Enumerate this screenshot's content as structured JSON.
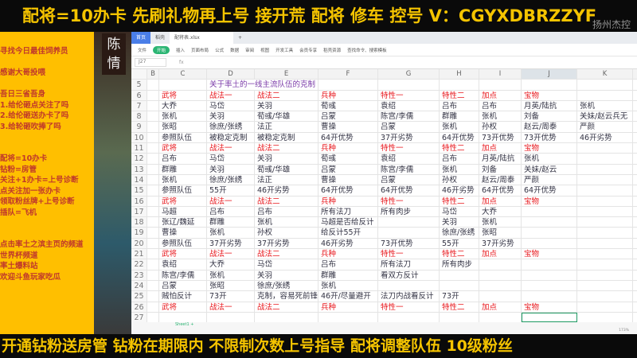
{
  "top_banner": "配将=10办卡  先刷礼物再上号  接开荒 配将 修车 控号 V：CGYXDBRZZYF",
  "watermark": "扬州杰控",
  "bottom_banner": "开通钻粉送房管  钻粉在期限内 不限制次数上号指导 配将调整队伍   10级粉丝",
  "side_panel": [
    "寻找今日最佳饲养员",
    "",
    "感谢大哥投喂",
    "",
    "吾日三省吾身",
    "1.给伦砸点关注了吗",
    "2.给伦砸送办卡了吗",
    "3.给轮砸吹捧了吗",
    "",
    "",
    "配将=10办卡",
    "钻粉=房管",
    "关注+1办卡=上号诊断",
    "点关注加一张办卡",
    "领取粉丝牌+上号诊断",
    "插队=飞机",
    "",
    "",
    "点击率土之滨主页的频道",
    "世界杯频道",
    "率土爆料站",
    "欢迎斗鱼玩家吃瓜"
  ],
  "game_name": "陈情",
  "tabs": [
    "首页",
    "稻壳",
    "配将表.xlsx",
    "+"
  ],
  "toolbar": [
    "文件",
    "开始",
    "插入",
    "页面布局",
    "公式",
    "数据",
    "审阅",
    "视图",
    "开发工具",
    "会员专享",
    "稻壳资源",
    "查找命令、搜索模板"
  ],
  "namebox": "J27",
  "fx": "fx",
  "columns": [
    "B",
    "C",
    "D",
    "E",
    "F",
    "G",
    "H",
    "I",
    "J",
    "K"
  ],
  "selected_column": "J",
  "selected_cell": "J27",
  "colors": {
    "header_red": "#e8161b",
    "title_purple": "#7a3aa8",
    "banner_yellow": "#f5c400",
    "panel_yellow": "#ffbf00"
  },
  "rows": [
    {
      "n": "5",
      "cells": [
        "",
        "",
        "关于率土的一线主流队伍的克制"
      ],
      "title": true
    },
    {
      "n": "6",
      "cells": [
        "",
        "武将",
        "战法一",
        "战法二",
        "兵种",
        "特性一",
        "特性二",
        "加点",
        "宝物"
      ],
      "header": true
    },
    {
      "n": "7",
      "cells": [
        "",
        "大乔",
        "马岱",
        "关羽",
        "荀彧",
        "袁绍",
        "吕布",
        "吕布",
        "月英/陆抗",
        "张机"
      ]
    },
    {
      "n": "8",
      "cells": [
        "",
        "张机",
        "关羽",
        "荀彧/华雄",
        "吕蒙",
        "陈宫/李儒",
        "群雕",
        "张机",
        "刘备",
        "关妹/赵云兵无"
      ]
    },
    {
      "n": "9",
      "cells": [
        "",
        "张昭",
        "徐庶/张绣",
        "法正",
        "曹操",
        "吕蒙",
        "张机",
        "孙权",
        "赵云/周泰",
        "严颜"
      ]
    },
    {
      "n": "10",
      "cells": [
        "",
        "参照队伍",
        "被稳定克制",
        "被稳定克制",
        "64开优势",
        "37开劣势",
        "64开优势",
        "73开优势",
        "73开优势",
        "46开劣势"
      ]
    },
    {
      "n": "11",
      "cells": [
        "",
        "武将",
        "战法一",
        "战法二",
        "兵种",
        "特性一",
        "特性二",
        "加点",
        "宝物"
      ],
      "header": true
    },
    {
      "n": "12",
      "cells": [
        "",
        "吕布",
        "马岱",
        "关羽",
        "荀彧",
        "袁绍",
        "吕布",
        "月英/陆抗",
        "张机"
      ]
    },
    {
      "n": "13",
      "cells": [
        "",
        "群雕",
        "关羽",
        "荀彧/华雄",
        "吕蒙",
        "陈宫/李儒",
        "张机",
        "刘备",
        "关妹/赵云"
      ]
    },
    {
      "n": "14",
      "cells": [
        "",
        "张机",
        "徐庶/张绣",
        "法正",
        "曹操",
        "吕蒙",
        "孙权",
        "赵云/周泰",
        "严颜"
      ]
    },
    {
      "n": "15",
      "cells": [
        "",
        "参照队伍",
        "55开",
        "46开劣势",
        "64开优势",
        "64开优势",
        "46开劣势",
        "64开优势",
        "64开优势"
      ]
    },
    {
      "n": "16",
      "cells": [
        "",
        "武将",
        "战法一",
        "战法二",
        "兵种",
        "特性一",
        "特性二",
        "加点",
        "宝物"
      ],
      "header": true
    },
    {
      "n": "17",
      "cells": [
        "",
        "马超",
        "吕布",
        "吕布",
        "所有法刀",
        "所有肉步",
        "马岱",
        "大乔"
      ]
    },
    {
      "n": "18",
      "cells": [
        "",
        "张辽/魏延",
        "群雕",
        "张机",
        "马超是否给反计",
        "",
        "关羽",
        "张机"
      ]
    },
    {
      "n": "19",
      "cells": [
        "",
        "曹操",
        "张机",
        "孙权",
        "给反计55开",
        "",
        "徐庶/张绣",
        "张昭"
      ]
    },
    {
      "n": "20",
      "cells": [
        "",
        "参照队伍",
        "37开劣势",
        "37开劣势",
        "46开劣势",
        "73开优势",
        "55开",
        "37开劣势"
      ]
    },
    {
      "n": "21",
      "cells": [
        "",
        "武将",
        "战法一",
        "战法二",
        "兵种",
        "特性一",
        "特性二",
        "加点",
        "宝物"
      ],
      "header": true
    },
    {
      "n": "22",
      "cells": [
        "",
        "袁绍",
        "大乔",
        "马岱",
        "吕布",
        "所有法刀",
        "所有肉步"
      ]
    },
    {
      "n": "23",
      "cells": [
        "",
        "陈宫/李儒",
        "张机",
        "关羽",
        "群雕",
        "看双方反计"
      ]
    },
    {
      "n": "24",
      "cells": [
        "",
        "吕蒙",
        "张昭",
        "徐庶/张绣",
        "张机"
      ]
    },
    {
      "n": "25",
      "cells": [
        "",
        "贼怕反计",
        "73开",
        "克制，容易死前锋",
        "46开/尽量避开",
        "法刀内战看反计",
        "73开"
      ]
    },
    {
      "n": "26",
      "cells": [
        "",
        "武将",
        "战法一",
        "战法二",
        "兵种",
        "特性一",
        "特性二",
        "加点",
        "宝物"
      ],
      "header": true
    },
    {
      "n": "27",
      "cells": []
    }
  ],
  "sheet_tab": "Sheet1",
  "zoom_level": "173%"
}
